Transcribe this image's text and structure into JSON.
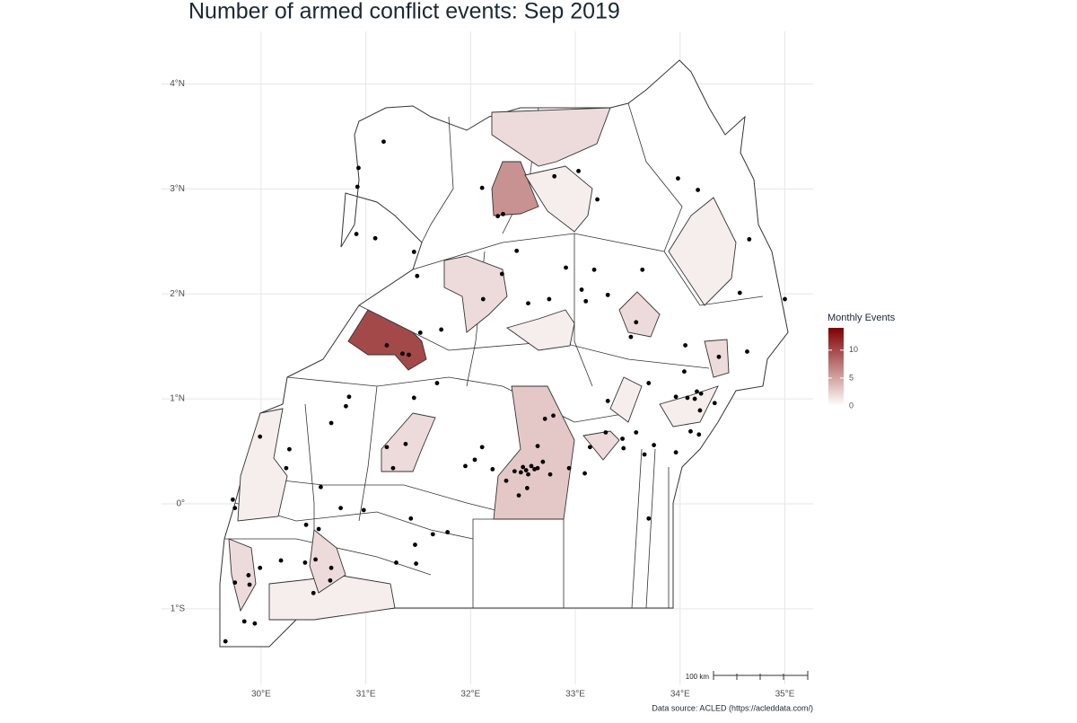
{
  "title": "Number of armed conflict events: Sep 2019",
  "map": {
    "xlim": [
      29.05,
      35.27
    ],
    "ylim": [
      -1.72,
      4.5
    ],
    "xticks": [
      {
        "value": 30,
        "label": "30°E"
      },
      {
        "value": 31,
        "label": "31°E"
      },
      {
        "value": 32,
        "label": "32°E"
      },
      {
        "value": 33,
        "label": "33°E"
      },
      {
        "value": 34,
        "label": "34°E"
      },
      {
        "value": 35,
        "label": "35°E"
      }
    ],
    "yticks": [
      {
        "value": 4,
        "label": "4°N"
      },
      {
        "value": 3,
        "label": "3°N"
      },
      {
        "value": 2,
        "label": "2°N"
      },
      {
        "value": 1,
        "label": "1°N"
      },
      {
        "value": 0,
        "label": "0°"
      },
      {
        "value": -1,
        "label": "1°S"
      }
    ],
    "grid": true,
    "districts": {
      "values": [
        10,
        6,
        2,
        1,
        2,
        1,
        2,
        1,
        3,
        2,
        1,
        2,
        1,
        1,
        2,
        2,
        1,
        2
      ]
    },
    "events": {
      "lon": [
        31.17,
        30.93,
        30.92,
        30.91,
        31.09,
        31.46,
        31.49,
        31.72,
        31.52,
        31.2,
        31.35,
        31.41,
        31.68,
        31.46,
        30.84,
        30.81,
        30.67,
        29.99,
        30.27,
        30.24,
        31.2,
        31.38,
        31.26,
        30.57,
        29.73,
        29.75,
        30.76,
        30.98,
        30.43,
        30.55,
        31.43,
        31.64,
        31.78,
        31.47,
        30.19,
        30.42,
        30.52,
        30.67,
        30.66,
        30.5,
        29.99,
        29.88,
        29.89,
        29.75,
        31.29,
        31.48,
        29.84,
        29.94,
        29.66,
        32.11,
        32.26,
        32.31,
        32.8,
        33.03,
        33.21,
        32.44,
        32.3,
        32.91,
        33.18,
        33.64,
        33.06,
        33.1,
        32.75,
        32.55,
        32.12,
        33.31,
        33.58,
        33.53,
        33.98,
        34.17,
        34.66,
        34.57,
        35.0,
        34.05,
        34.04,
        34.37,
        34.64,
        33.31,
        33.7,
        33.96,
        34.07,
        34.16,
        34.2,
        34.14,
        34.33,
        34.19,
        34.1,
        34.18,
        32.71,
        32.79,
        33.29,
        33.45,
        33.58,
        33.75,
        33.66,
        33.46,
        33.14,
        33.96,
        32.11,
        31.95,
        32.04,
        32.21,
        32.64,
        32.69,
        32.76,
        32.94,
        33.09,
        32.34,
        32.54,
        32.46,
        32.42,
        32.48,
        32.53,
        32.58,
        32.61,
        32.64,
        32.5,
        32.55,
        33.7
      ],
      "lat": [
        3.45,
        3.2,
        3.02,
        2.57,
        2.53,
        2.4,
        2.17,
        1.66,
        1.63,
        1.51,
        1.43,
        1.42,
        1.15,
        1.01,
        1.02,
        0.93,
        0.77,
        0.64,
        0.52,
        0.34,
        0.54,
        0.57,
        0.34,
        0.16,
        0.04,
        -0.04,
        -0.04,
        -0.06,
        -0.2,
        -0.24,
        -0.14,
        -0.29,
        -0.27,
        -0.39,
        -0.54,
        -0.56,
        -0.53,
        -0.61,
        -0.73,
        -0.85,
        -0.61,
        -0.68,
        -0.77,
        -0.75,
        -0.56,
        -0.57,
        -1.12,
        -1.14,
        -1.31,
        3.01,
        2.74,
        2.76,
        3.12,
        3.17,
        2.9,
        2.41,
        2.19,
        2.25,
        2.23,
        2.23,
        2.04,
        1.93,
        1.95,
        1.91,
        1.95,
        1.99,
        1.73,
        1.59,
        3.1,
        2.99,
        2.52,
        2.01,
        1.95,
        1.51,
        1.26,
        1.4,
        1.45,
        0.98,
        1.15,
        1.02,
        1.01,
        1.07,
        1.05,
        1.0,
        0.96,
        0.89,
        0.69,
        0.66,
        0.81,
        0.84,
        0.68,
        0.62,
        0.68,
        0.56,
        0.47,
        0.53,
        0.54,
        0.49,
        0.54,
        0.36,
        0.42,
        0.33,
        0.55,
        0.4,
        0.28,
        0.34,
        0.29,
        0.22,
        0.15,
        0.08,
        0.31,
        0.3,
        0.32,
        0.36,
        0.33,
        0.34,
        0.35,
        0.28,
        -0.14
      ]
    }
  },
  "legend": {
    "title": "Monthly Events",
    "lim": [
      0,
      14
    ],
    "ticks": [
      0,
      5,
      10
    ],
    "colors": [
      "#ffffff",
      "#7f0000"
    ]
  },
  "scale_bar": "100 km",
  "caption": "Data source: ACLED (https://acleddata.com/)"
}
